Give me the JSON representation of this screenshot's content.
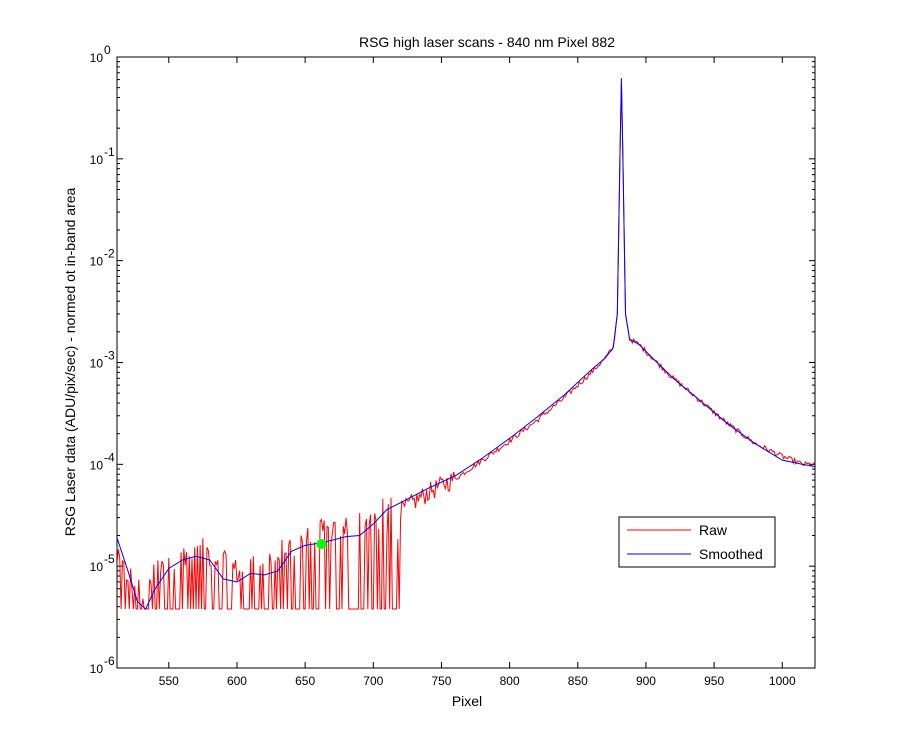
{
  "chart_data": {
    "type": "line",
    "title": "RSG high laser scans  - 840 nm    Pixel 882",
    "xlabel": "Pixel",
    "ylabel": "RSG Laser data (ADU/pix/sec) - normed ot in-band area",
    "xlim": [
      512,
      1024
    ],
    "ylim": [
      1e-06,
      1
    ],
    "yscale": "log",
    "grid": false,
    "legend_position": "lower-right",
    "x_ticks": [
      550,
      600,
      650,
      700,
      750,
      800,
      850,
      900,
      950,
      1000
    ],
    "y_ticks": [
      {
        "value": 1e-06,
        "base": "10",
        "exp": "-6"
      },
      {
        "value": 1e-05,
        "base": "10",
        "exp": "-5"
      },
      {
        "value": 0.0001,
        "base": "10",
        "exp": "-4"
      },
      {
        "value": 0.001,
        "base": "10",
        "exp": "-3"
      },
      {
        "value": 0.01,
        "base": "10",
        "exp": "-2"
      },
      {
        "value": 0.1,
        "base": "10",
        "exp": "-1"
      },
      {
        "value": 1,
        "base": "10",
        "exp": "0"
      }
    ],
    "series": [
      {
        "name": "Raw",
        "color": "#ff0000",
        "style": "noisy",
        "x": [
          512,
          530,
          545,
          560,
          575,
          590,
          600,
          610,
          625,
          640,
          655,
          665,
          680,
          695,
          710,
          725,
          740,
          760,
          780,
          800,
          820,
          840,
          860,
          870,
          876,
          879,
          881,
          882,
          883,
          885,
          888,
          895,
          905,
          920,
          940,
          960,
          980,
          1000,
          1015,
          1024
        ],
        "values": [
          8.5e-06,
          4e-06,
          8.5e-06,
          1e-05,
          1.05e-05,
          8e-06,
          6.5e-06,
          7.5e-06,
          8.5e-06,
          1.2e-05,
          1.5e-05,
          1.65e-05,
          1.8e-05,
          2e-05,
          2.8e-05,
          3.8e-05,
          5.2e-05,
          7.2e-05,
          0.00011,
          0.00017,
          0.00027,
          0.00045,
          0.0008,
          0.0011,
          0.0014,
          0.003,
          0.12,
          0.55,
          0.12,
          0.003,
          0.0017,
          0.0015,
          0.0011,
          0.0007,
          0.00042,
          0.00025,
          0.00016,
          0.00012,
          0.0001,
          0.0001
        ],
        "noise_floor": 3.8e-06,
        "noise_ceiling": 2.8e-05,
        "noise_until_x": 720
      },
      {
        "name": "Smoothed",
        "color": "#0000ff",
        "style": "smooth",
        "x": [
          512,
          520,
          527,
          533,
          540,
          550,
          560,
          570,
          580,
          590,
          600,
          610,
          620,
          630,
          640,
          650,
          660,
          670,
          680,
          690,
          700,
          710,
          720,
          740,
          760,
          780,
          800,
          820,
          840,
          860,
          870,
          876,
          879,
          881,
          882,
          883,
          885,
          888,
          895,
          905,
          920,
          940,
          960,
          980,
          1000,
          1015,
          1024
        ],
        "values": [
          1.9e-05,
          9e-06,
          4.5e-06,
          3.8e-06,
          6e-06,
          9.5e-06,
          1.15e-05,
          1.25e-05,
          1.15e-05,
          7.5e-06,
          7e-06,
          8.5e-06,
          8.2e-06,
          9e-06,
          1.4e-05,
          1.6e-05,
          1.68e-05,
          1.8e-05,
          1.95e-05,
          2e-05,
          2.6e-05,
          3.6e-05,
          4.2e-05,
          5.8e-05,
          7.7e-05,
          0.000115,
          0.00018,
          0.00029,
          0.00048,
          0.00085,
          0.0011,
          0.0014,
          0.003,
          0.12,
          0.62,
          0.12,
          0.003,
          0.0017,
          0.0015,
          0.0011,
          0.0007,
          0.00042,
          0.00025,
          0.00016,
          0.00011,
          0.0001,
          9.5e-05
        ]
      }
    ],
    "marker": {
      "x": 662,
      "y": 1.65e-05,
      "color": "#00ff00"
    }
  }
}
